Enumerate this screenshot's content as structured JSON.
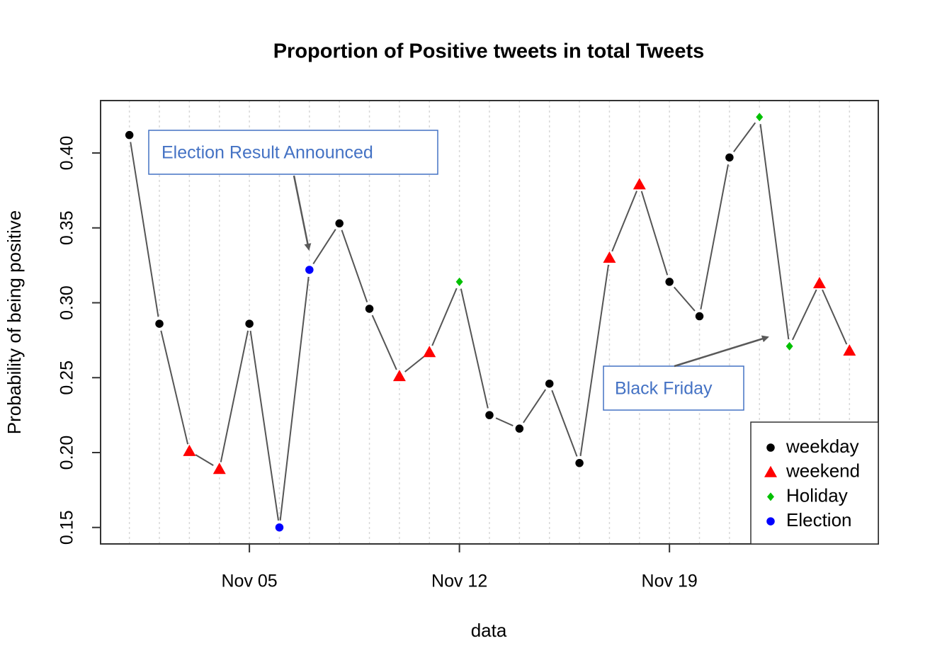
{
  "chart_data": {
    "type": "line",
    "title": "Proportion of Positive tweets in total Tweets",
    "x_label": "data",
    "y_label": "Probability of being positive",
    "x": [
      1,
      2,
      3,
      4,
      5,
      6,
      7,
      8,
      9,
      10,
      11,
      12,
      13,
      14,
      15,
      16,
      17,
      18,
      19,
      20,
      21,
      22,
      23,
      24,
      25
    ],
    "values": [
      0.412,
      0.286,
      0.201,
      0.189,
      0.286,
      0.15,
      0.322,
      0.353,
      0.296,
      0.251,
      0.267,
      0.314,
      0.225,
      0.216,
      0.246,
      0.193,
      0.33,
      0.379,
      0.314,
      0.291,
      0.397,
      0.424,
      0.271,
      0.313,
      0.268
    ],
    "groups": [
      "weekday",
      "weekday",
      "weekend",
      "weekend",
      "weekday",
      "Election",
      "Election",
      "weekday",
      "weekday",
      "weekend",
      "weekend",
      "Holiday",
      "weekday",
      "weekday",
      "weekday",
      "weekday",
      "weekend",
      "weekend",
      "weekday",
      "weekday",
      "weekday",
      "Holiday",
      "Holiday",
      "weekend",
      "weekend"
    ],
    "legend_entries": [
      {
        "name": "weekday",
        "color": "#000000",
        "marker": "circle"
      },
      {
        "name": "weekend",
        "color": "#ff0000",
        "marker": "triangle"
      },
      {
        "name": "Holiday",
        "color": "#00c000",
        "marker": "diamond"
      },
      {
        "name": "Election",
        "color": "#0000ff",
        "marker": "circle"
      }
    ],
    "line_color": "#555555",
    "xlim": [
      0.04,
      25.96
    ],
    "xticks": [
      {
        "value": 5,
        "label": "Nov 05"
      },
      {
        "value": 12,
        "label": "Nov 12"
      },
      {
        "value": 19,
        "label": "Nov 19"
      }
    ],
    "ylim": [
      0.139,
      0.435
    ],
    "yticks": [
      {
        "value": 0.15,
        "label": "0.15"
      },
      {
        "value": 0.2,
        "label": "0.20"
      },
      {
        "value": 0.25,
        "label": "0.25"
      },
      {
        "value": 0.3,
        "label": "0.30"
      },
      {
        "value": 0.35,
        "label": "0.35"
      },
      {
        "value": 0.4,
        "label": "0.40"
      }
    ],
    "grid": true,
    "legend": "bottomright",
    "annotations": [
      "Election Result Announced",
      "Black Friday"
    ]
  }
}
